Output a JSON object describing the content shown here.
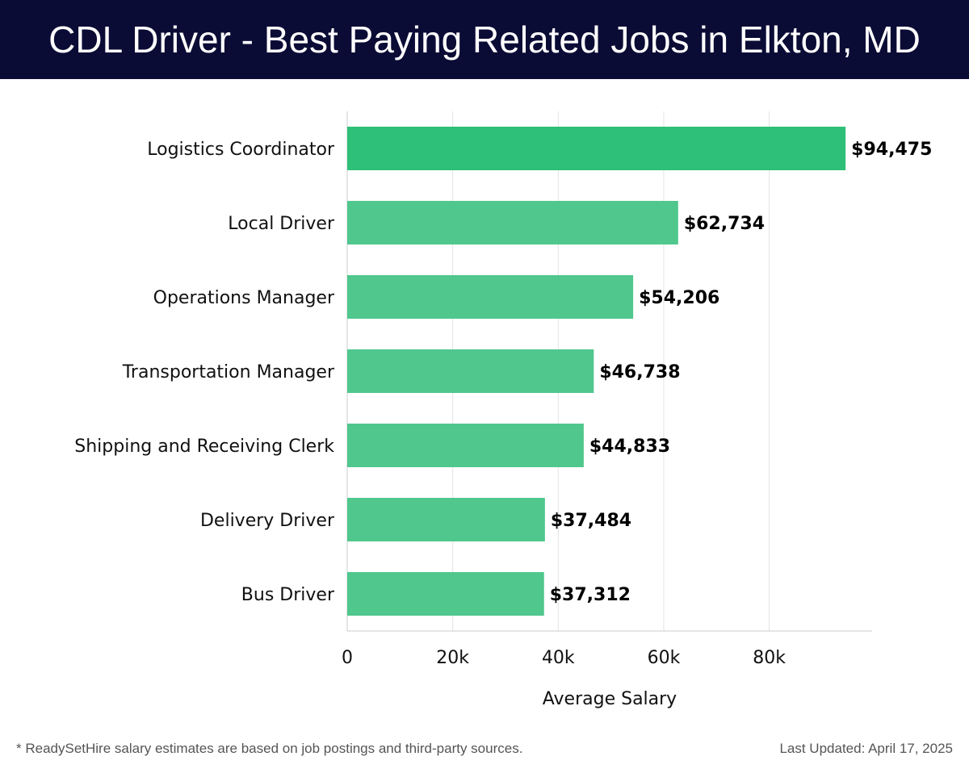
{
  "header": {
    "title": "CDL Driver - Best Paying Related Jobs in Elkton, MD"
  },
  "chart_data": {
    "type": "bar",
    "orientation": "horizontal",
    "title": "CDL Driver - Best Paying Related Jobs in Elkton, MD",
    "categories": [
      "Logistics Coordinator",
      "Local Driver",
      "Operations Manager",
      "Transportation Manager",
      "Shipping and Receiving Clerk",
      "Delivery Driver",
      "Bus Driver"
    ],
    "values": [
      94475,
      62734,
      54206,
      46738,
      44833,
      37484,
      37312
    ],
    "value_labels": [
      "$94,475",
      "$62,734",
      "$54,206",
      "$46,738",
      "$44,833",
      "$37,484",
      "$37,312"
    ],
    "xlabel": "Average Salary",
    "ylabel": "",
    "xlim": [
      0,
      99500
    ],
    "xticks": [
      0,
      20000,
      40000,
      60000,
      80000
    ],
    "xtick_labels": [
      "0",
      "20k",
      "40k",
      "60k",
      "80k"
    ],
    "grid": true,
    "colors": {
      "top": "#2ebf78",
      "rest": "#4fc78d",
      "header": "#0b0c35"
    }
  },
  "footer": {
    "note": "* ReadySetHire salary estimates are based on job postings and third-party sources.",
    "updated": "Last Updated: April 17, 2025"
  }
}
